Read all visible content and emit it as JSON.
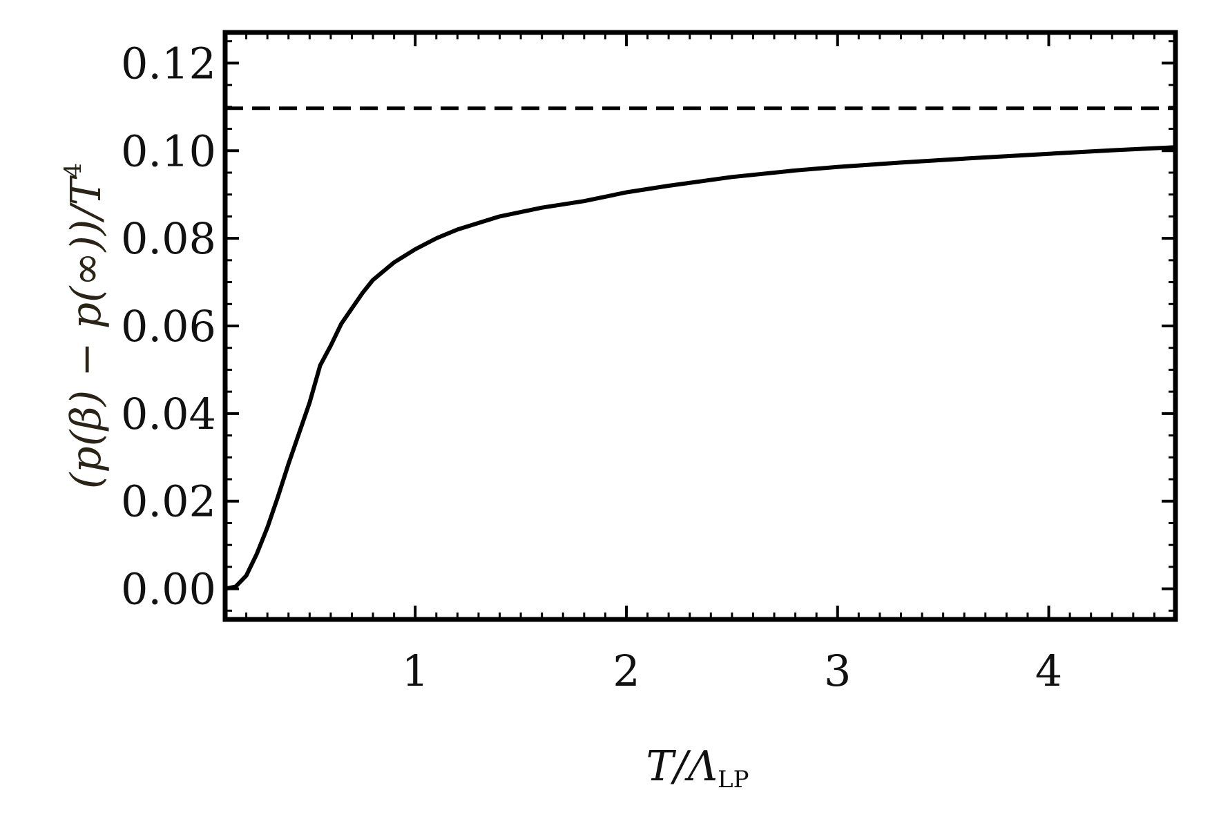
{
  "chart_data": {
    "type": "line",
    "title": "",
    "xlabel": {
      "main": "T/Λ",
      "sub": "LP"
    },
    "ylabel": {
      "main": "(p(β) − p(∞))/T",
      "sup": "4"
    },
    "xlim": [
      0.1,
      4.6
    ],
    "ylim": [
      -0.007,
      0.127
    ],
    "xticks": [
      1,
      2,
      3,
      4
    ],
    "xtick_labels": [
      "1",
      "2",
      "3",
      "4"
    ],
    "yticks": [
      0.0,
      0.02,
      0.04,
      0.06,
      0.08,
      0.1,
      0.12
    ],
    "ytick_labels": [
      "0.00",
      "0.02",
      "0.04",
      "0.06",
      "0.08",
      "0.10",
      "0.12"
    ],
    "grid": false,
    "legend": "none",
    "colors": {
      "curve": "#000000",
      "frame": "#000000",
      "ylabel": "#2a2418"
    },
    "series": [
      {
        "style": "solid",
        "x": [
          0.1,
          0.15,
          0.2,
          0.25,
          0.3,
          0.35,
          0.4,
          0.45,
          0.5,
          0.55,
          0.6,
          0.65,
          0.7,
          0.75,
          0.8,
          0.9,
          1.0,
          1.1,
          1.2,
          1.3,
          1.4,
          1.5,
          1.6,
          1.8,
          2.0,
          2.2,
          2.5,
          2.8,
          3.0,
          3.3,
          3.6,
          4.0,
          4.3,
          4.6
        ],
        "y": [
          0.0,
          0.0005,
          0.003,
          0.008,
          0.014,
          0.021,
          0.0285,
          0.0355,
          0.0425,
          0.051,
          0.0555,
          0.0605,
          0.064,
          0.0675,
          0.0705,
          0.0745,
          0.0775,
          0.08,
          0.082,
          0.0835,
          0.085,
          0.086,
          0.087,
          0.0885,
          0.0905,
          0.092,
          0.094,
          0.0955,
          0.0963,
          0.0973,
          0.0982,
          0.0993,
          0.1001,
          0.1008
        ]
      },
      {
        "style": "dashed",
        "x": [
          0.1,
          4.6
        ],
        "y": [
          0.1097,
          0.1097
        ]
      }
    ]
  }
}
